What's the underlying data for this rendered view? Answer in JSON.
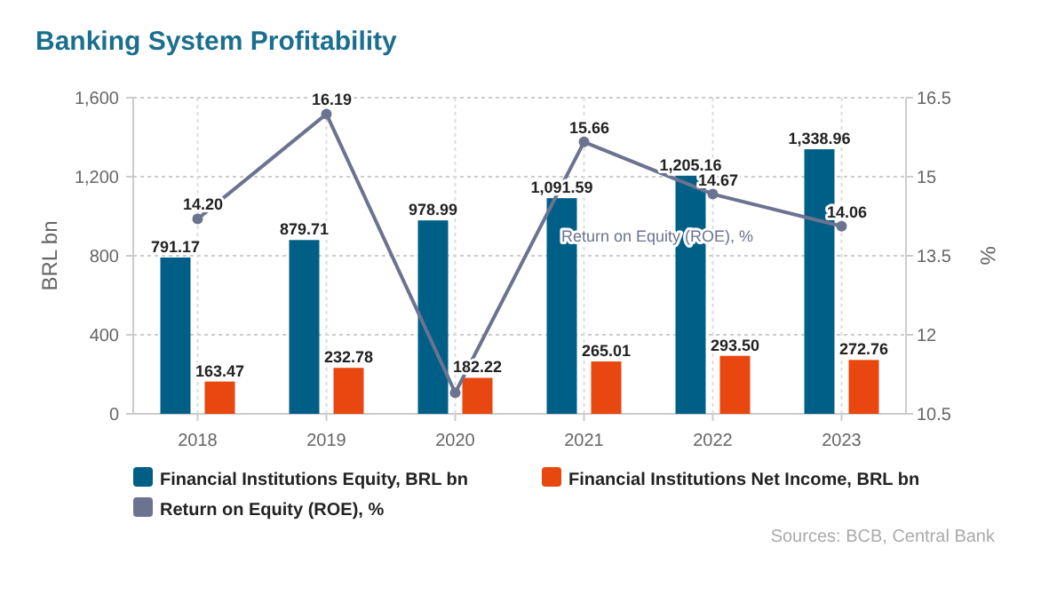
{
  "chart_data": {
    "type": "bar",
    "title": "Banking System Profitability",
    "categories": [
      "2018",
      "2019",
      "2020",
      "2021",
      "2022",
      "2023"
    ],
    "series": [
      {
        "name": "Financial Institutions Equity, BRL bn",
        "color": "#005f87",
        "values": [
          791.17,
          879.71,
          978.99,
          1091.59,
          1205.16,
          1338.96
        ],
        "value_labels": [
          "791.17",
          "879.71",
          "978.99",
          "1,091.59",
          "1,205.16",
          "1,338.96"
        ]
      },
      {
        "name": "Financial Institutions Net Income, BRL bn",
        "color": "#e8470f",
        "values": [
          163.47,
          232.78,
          182.22,
          265.01,
          293.5,
          272.76
        ],
        "value_labels": [
          "163.47",
          "232.78",
          "182.22",
          "265.01",
          "293.50",
          "272.76"
        ]
      },
      {
        "name": "Return on Equity (ROE), %",
        "type": "line",
        "axis": "y2",
        "color": "#6b7390",
        "values": [
          14.2,
          16.19,
          10.9,
          15.66,
          14.67,
          14.06
        ],
        "value_labels": [
          "14.20",
          "16.19",
          null,
          "15.66",
          "14.67",
          "14.06"
        ]
      }
    ],
    "ylabel": "BRL bn",
    "y2label": "%",
    "ylim": [
      0,
      1600
    ],
    "yticks": [
      0,
      {
        "value": 400,
        "label": "400"
      },
      {
        "value": 800,
        "label": "800"
      },
      {
        "value": 1200,
        "label": "1,200"
      },
      {
        "value": 1600,
        "label": "1,600"
      }
    ],
    "y2lim": [
      10.5,
      16.5
    ],
    "y2ticks": [
      10.5,
      12,
      13.5,
      15,
      16.5
    ],
    "grid": true,
    "legend": "bottom",
    "marker": "circle",
    "annotations": [
      "Return on Equity (ROE), %",
      "Sources: BCB, Central Bank"
    ]
  }
}
